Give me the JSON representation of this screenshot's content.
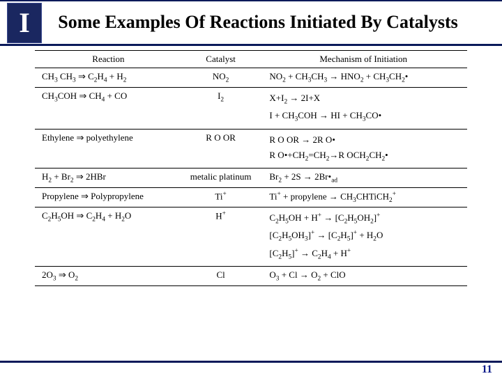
{
  "header": {
    "logo_letter": "I",
    "title": "Some Examples Of Reactions Initiated By Catalysts"
  },
  "table": {
    "headers": {
      "reaction": "Reaction",
      "catalyst": "Catalyst",
      "mechanism": "Mechanism of Initiation"
    },
    "rows": [
      {
        "reaction": "CH₃ CH₃ ⇒ C₂H₄ + H₂",
        "catalyst": "NO₂",
        "mechanism": "NO₂ + CH₃CH₃ → HNO₂ + CH₃CH₂•"
      },
      {
        "reaction": "CH₃COH ⇒ CH₄ + CO",
        "catalyst": "I₂",
        "mechanism": "X+I₂ → 2I+X\nI + CH₃COH → HI + CH₃CO•"
      },
      {
        "reaction": "Ethylene ⇒ polyethylene",
        "catalyst": "R O OR",
        "mechanism": "R O OR → 2R O•\nR O•+CH₂=CH₂→R OCH₂CH₂•"
      },
      {
        "reaction": "H₂ + Br₂ ⇒ 2HBr",
        "catalyst": "metalic platinum",
        "mechanism": "Br₂ + 2S → 2Br•ₐd"
      },
      {
        "reaction": "Propylene ⇒ Polypropylene",
        "catalyst": "Ti⁺",
        "mechanism": "Ti⁺ + propylene → CH₃CHTiCH₂⁺"
      },
      {
        "reaction": "C₂H₅OH ⇒ C₂H₄ + H₂O",
        "catalyst": "H⁺",
        "mechanism": "C₂H₅OH + H⁺ → [C₂H₅OH₂]⁺\n[C₂H₅OH₃]⁺ → [C₂H₅]⁺ + H₂O\n[C₂H₅]⁺ → C₂H₄ + H⁺"
      },
      {
        "reaction": "2O₃ ⇒ O₂",
        "catalyst": "Cl",
        "mechanism": "O₃ + Cl → O₂ + ClO"
      }
    ]
  },
  "footer": {
    "page_number": "11"
  },
  "colors": {
    "rule": "#0a1a5a",
    "page_num": "#0a1a8a",
    "logo_bg": "#1a2760"
  }
}
